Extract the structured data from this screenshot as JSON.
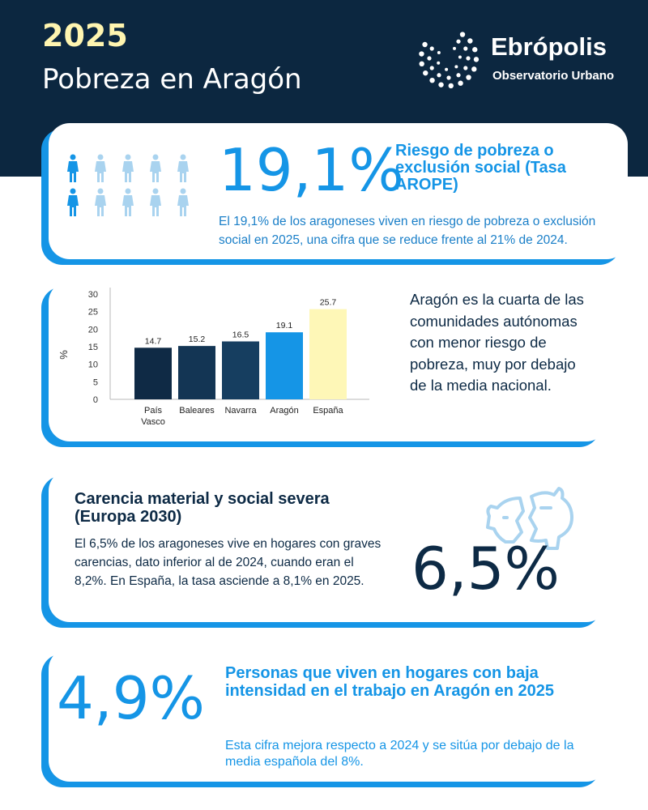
{
  "header": {
    "year": "2025",
    "title": "Pobreza en Aragón",
    "brand_name": "Ebrópolis",
    "brand_subtitle": "Observatorio Urbano",
    "brand_logo_icon": "dots-circle-logo"
  },
  "arope": {
    "value": "19,1%",
    "heading": "Riesgo de pobreza o exclusión social (Tasa AROPE)",
    "text": "El 19,1% de los aragoneses viven en riesgo de pobreza o exclusión social en 2025, una cifra que se reduce frente  al 21% de 2024.",
    "icon": "people-icon",
    "people_highlighted": 2,
    "people_total": 10
  },
  "comparison": {
    "text": "Aragón es la cuarta de las comunidades autónomas con menor riesgo de pobreza, muy por debajo de la media nacional."
  },
  "chart_data": {
    "type": "bar",
    "categories": [
      "País Vasco",
      "Baleares",
      "Navarra",
      "Aragón",
      "España"
    ],
    "values": [
      14.7,
      15.2,
      16.5,
      19.1,
      25.7
    ],
    "value_labels": [
      "14.7",
      "15.2",
      "16.5",
      "19.1",
      "25.7"
    ],
    "xlabel": "",
    "ylabel": "%",
    "ylim": [
      0,
      30
    ],
    "yticks": [
      "0",
      "5",
      "10",
      "15",
      "20",
      "25",
      "30"
    ],
    "grid": false,
    "colors": [
      "#0f2a45",
      "#133554",
      "#163e60",
      "#1595e6",
      "#fef7b7"
    ]
  },
  "material": {
    "heading": "Carencia material  y social severa (Europa 2030)",
    "text": "El 6,5% de los aragoneses vive en hogares con graves carencias, dato inferior al de 2024, cuando eran el 8,2%. En España, la tasa asciende a 8,1% en 2025.",
    "value": "6,5%",
    "icon": "broken-piggy-bank-icon"
  },
  "work": {
    "value": "4,9%",
    "heading": "Personas que viven en hogares con baja intensidad en el trabajo en Aragón en 2025",
    "text": "Esta cifra mejora respecto a 2024 y se sitúa por debajo de la media española del 8%."
  },
  "colors": {
    "navy": "#0c2740",
    "blue": "#1595e6",
    "light_blue": "#a9d3ef",
    "yellow": "#fff5b0"
  }
}
